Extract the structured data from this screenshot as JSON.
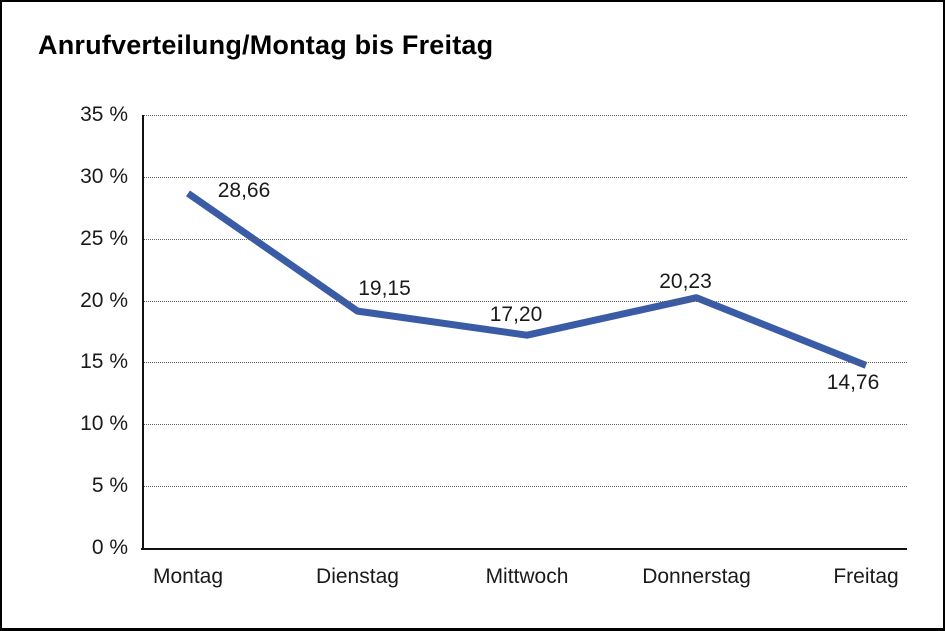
{
  "chart": {
    "title": "Anrufverteilung/Montag bis Freitag"
  },
  "chart_data": {
    "type": "line",
    "title": "Anrufverteilung/Montag bis Freitag",
    "categories": [
      "Montag",
      "Dienstag",
      "Mittwoch",
      "Donnerstag",
      "Freitag"
    ],
    "values": [
      28.66,
      19.15,
      17.2,
      20.23,
      14.76
    ],
    "value_labels": [
      "28,66",
      "19,15",
      "17,20",
      "20,23",
      "14,76"
    ],
    "y_tick_labels": [
      "0 %",
      "5 %",
      "10 %",
      "15 %",
      "20 %",
      "25 %",
      "30 %",
      "35 %"
    ],
    "y_tick_step": 5,
    "ylim": [
      0,
      35
    ],
    "xlabel": "",
    "ylabel": "",
    "grid": "horizontal-dotted",
    "legend": "none",
    "line_color": "#3A5BA5",
    "axis_color": "#111111",
    "gridline_color": "#5f5f5f",
    "label_placements": [
      "right",
      "above",
      "above",
      "above",
      "below"
    ]
  }
}
